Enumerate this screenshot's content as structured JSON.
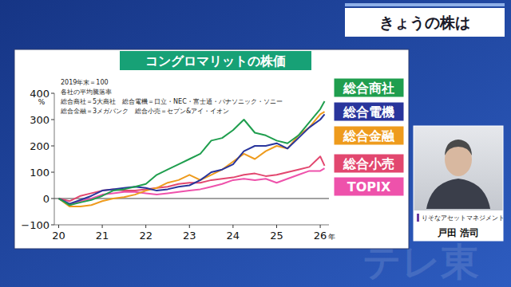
{
  "chart_data": {
    "type": "line",
    "title": "コングロマリットの株価",
    "notes": [
      "2019年末＝100",
      "各社の平均騰落率",
      "総合商社＝5大商社　総合電機＝日立・NEC・富士通・パナソニック・ソニー",
      "総合金融＝3メガバンク　総合小売＝セブン&アイ・イオン"
    ],
    "y_label": "%",
    "x_label": "年",
    "x": [
      2020.0,
      2020.25,
      2020.5,
      2020.75,
      2021.0,
      2021.25,
      2021.5,
      2021.75,
      2022.0,
      2022.25,
      2022.5,
      2022.75,
      2023.0,
      2023.25,
      2023.5,
      2023.75,
      2024.0,
      2024.25,
      2024.5,
      2024.75,
      2025.0,
      2025.25,
      2025.5,
      2025.75,
      2026.0,
      2026.1
    ],
    "series": [
      {
        "name": "総合商社",
        "color": "#1f9e4e",
        "values": [
          0,
          -25,
          -15,
          -5,
          10,
          30,
          35,
          45,
          55,
          90,
          110,
          130,
          150,
          170,
          220,
          230,
          260,
          300,
          250,
          240,
          220,
          210,
          240,
          290,
          340,
          370
        ]
      },
      {
        "name": "総合電機",
        "color": "#29359c",
        "values": [
          0,
          -20,
          -5,
          10,
          30,
          35,
          40,
          45,
          40,
          30,
          35,
          45,
          50,
          70,
          100,
          110,
          130,
          180,
          200,
          200,
          210,
          190,
          230,
          270,
          300,
          320
        ]
      },
      {
        "name": "総合金融",
        "color": "#ee9b1d",
        "values": [
          0,
          -30,
          -30,
          -25,
          -10,
          0,
          5,
          15,
          30,
          40,
          60,
          70,
          90,
          70,
          90,
          110,
          140,
          170,
          150,
          180,
          200,
          190,
          240,
          270,
          320,
          330
        ]
      },
      {
        "name": "総合小売",
        "color": "#e2476f",
        "values": [
          0,
          -10,
          10,
          20,
          30,
          35,
          30,
          30,
          35,
          40,
          45,
          55,
          60,
          60,
          70,
          75,
          80,
          90,
          95,
          85,
          90,
          100,
          110,
          120,
          160,
          125
        ]
      },
      {
        "name": "TOPIX",
        "color": "#ee52ab",
        "values": [
          0,
          -25,
          -10,
          0,
          15,
          20,
          25,
          25,
          20,
          15,
          20,
          25,
          30,
          35,
          45,
          55,
          70,
          75,
          70,
          75,
          60,
          75,
          90,
          105,
          105,
          115
        ]
      }
    ],
    "xlim": [
      2019.9,
      2026.2
    ],
    "xticks": [
      {
        "value": 2020,
        "label": "20"
      },
      {
        "value": 2021,
        "label": "21"
      },
      {
        "value": 2022,
        "label": "22"
      },
      {
        "value": 2023,
        "label": "23"
      },
      {
        "value": 2024,
        "label": "24"
      },
      {
        "value": 2025,
        "label": "25"
      },
      {
        "value": 2026,
        "label": "26"
      }
    ],
    "ylim": [
      -100,
      400
    ],
    "yticks": [
      {
        "value": -100,
        "label": "−100"
      },
      0,
      100,
      200,
      300,
      400
    ],
    "grid": false,
    "legend": "right"
  },
  "header": "きょうの株は",
  "guest": {
    "company": "りそなアセットマネジメント",
    "name": "戸田 浩司"
  },
  "watermark": "テレ東"
}
